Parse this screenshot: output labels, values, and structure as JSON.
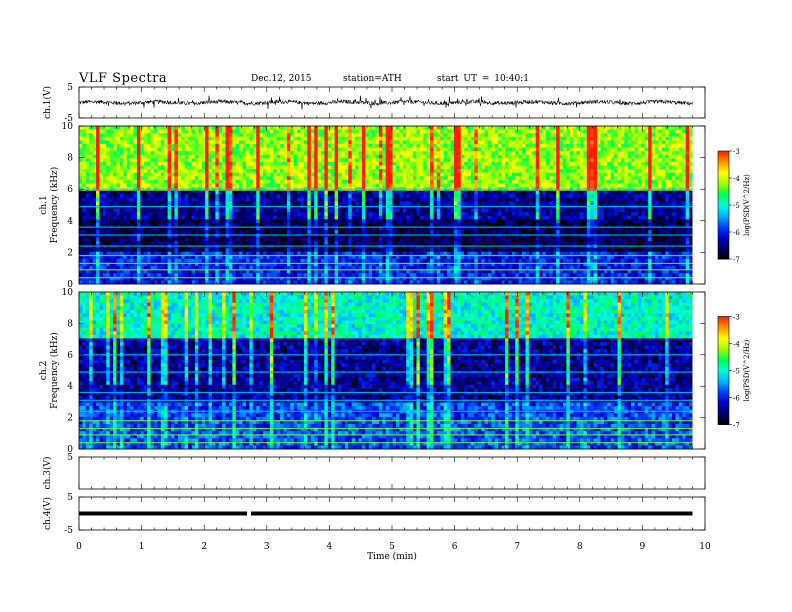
{
  "header": {
    "title": "VLF  Spectra",
    "date": "Dec.12, 2015",
    "station": "station=ATH",
    "start": "start  UT  =   10:40:1"
  },
  "chart_data": [
    {
      "type": "line",
      "panel": "ch1-waveform",
      "ylabel": "ch.1(V)",
      "ylim": [
        -5,
        5
      ],
      "yticks": [
        "5",
        "-5"
      ],
      "color": "#000000",
      "series": [
        {
          "x_range_min": [
            0,
            9.8
          ],
          "mean": 0,
          "noise_amplitude": 0.6,
          "spikes_up_to": 1.8
        }
      ]
    },
    {
      "type": "heatmap",
      "panel": "ch1-spectrogram",
      "ylabel": "ch.1\nFrequency  (kHz)",
      "ylim": [
        0,
        10
      ],
      "yticks": [
        "0",
        "2",
        "4",
        "6",
        "8",
        "10"
      ],
      "x_range_min": [
        0,
        9.8
      ],
      "colorbar": {
        "label": "log(PSD(V^2/Hz)",
        "range": [
          -7,
          -3
        ],
        "ticks": [
          "-3",
          "-4",
          "-5",
          "-6",
          "-7"
        ]
      },
      "description_levels": [
        {
          "band_khz": [
            6,
            10
          ],
          "logpsd": -4.2
        },
        {
          "band_khz": [
            4,
            6
          ],
          "logpsd": -6.4
        },
        {
          "band_khz": [
            2,
            4
          ],
          "logpsd": -6.7
        },
        {
          "band_khz": [
            0,
            2
          ],
          "logpsd": -6.0
        }
      ]
    },
    {
      "type": "heatmap",
      "panel": "ch2-spectrogram",
      "ylabel": "ch.2\nFrequency  (kHz)",
      "ylim": [
        0,
        10
      ],
      "yticks": [
        "0",
        "2",
        "4",
        "6",
        "8",
        "10"
      ],
      "x_range_min": [
        0,
        9.8
      ],
      "colorbar": {
        "label": "log(PSD(V^2/Hz)",
        "range": [
          -7,
          -3
        ],
        "ticks": [
          "-3",
          "-4",
          "-5",
          "-6",
          "-7"
        ]
      },
      "description_levels": [
        {
          "band_khz": [
            7,
            10
          ],
          "logpsd": -5.0
        },
        {
          "band_khz": [
            3,
            7
          ],
          "logpsd": -6.4
        },
        {
          "band_khz": [
            0,
            3
          ],
          "logpsd": -5.8
        }
      ]
    },
    {
      "type": "line",
      "panel": "ch3-waveform",
      "ylabel": "ch.3(V)",
      "ylim": [
        -5,
        5
      ],
      "yticks": [
        "5"
      ],
      "series": []
    },
    {
      "type": "line",
      "panel": "ch4-waveform",
      "ylabel": "ch.4(V)",
      "ylim": [
        -5,
        5
      ],
      "yticks": [
        "5",
        "-5"
      ],
      "color": "#000000",
      "series": [
        {
          "x_range_min": [
            0,
            9.8
          ],
          "value": 0,
          "gap_at_min": 2.7
        }
      ]
    }
  ],
  "xaxis": {
    "label": "Time  (min)",
    "xlim": [
      0,
      10
    ],
    "ticks": [
      "0",
      "1",
      "2",
      "3",
      "4",
      "5",
      "6",
      "7",
      "8",
      "9",
      "10"
    ]
  },
  "colors": {
    "colormap": [
      "#000000",
      "#000064",
      "#0000c8",
      "#0040ff",
      "#00b4ff",
      "#00ffd8",
      "#00ff50",
      "#a0ff00",
      "#ffff00",
      "#ff9000",
      "#ff1e00",
      "#ffffff"
    ]
  }
}
